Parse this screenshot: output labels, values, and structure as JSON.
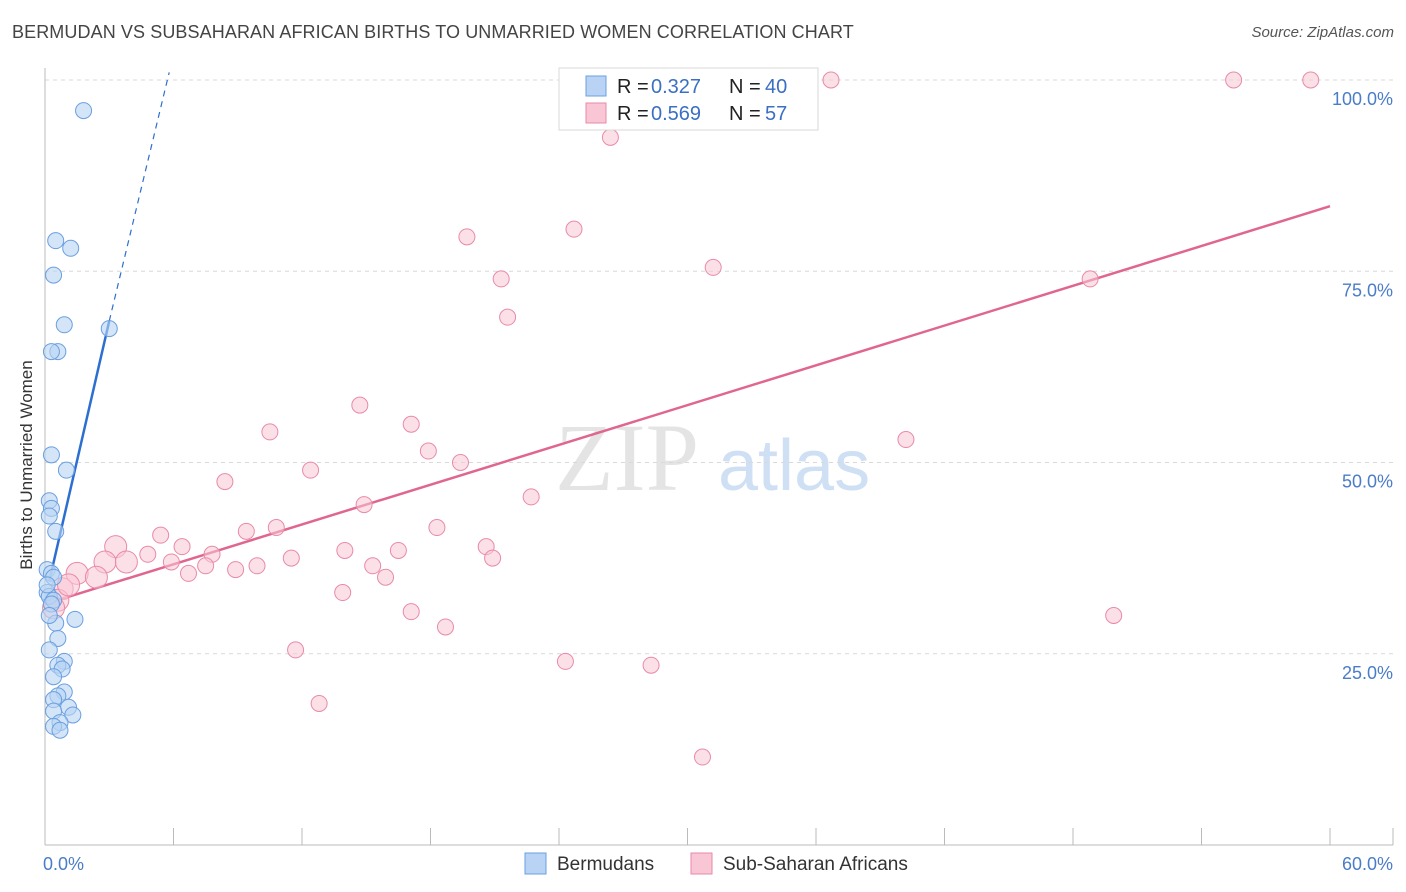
{
  "title": "BERMUDAN VS SUBSAHARAN AFRICAN BIRTHS TO UNMARRIED WOMEN CORRELATION CHART",
  "source": "Source: ZipAtlas.com",
  "watermark": {
    "zip": "ZIP",
    "atlas": "atlas"
  },
  "colors": {
    "blue_fill": "#b8d3f4",
    "blue_stroke": "#6a9fe0",
    "blue_line": "#2c6fd1",
    "pink_fill": "#f9c6d6",
    "pink_stroke": "#e98aa8",
    "pink_line": "#e0668f",
    "tick_text": "#4a7cc7",
    "grid": "#d9d9d9"
  },
  "legend": {
    "rows": [
      {
        "r_label": "R =",
        "r_value": "0.327",
        "n_label": "N =",
        "n_value": "40"
      },
      {
        "r_label": "R =",
        "r_value": "0.569",
        "n_label": "N =",
        "n_value": "57"
      }
    ]
  },
  "chart_data": {
    "type": "scatter",
    "title": "BERMUDAN VS SUBSAHARAN AFRICAN BIRTHS TO UNMARRIED WOMEN CORRELATION CHART",
    "xlabel": "",
    "ylabel": "Births to Unmarried Women",
    "xlim": [
      0,
      60
    ],
    "ylim": [
      0,
      100
    ],
    "x_tick_labels": [
      "0.0%",
      "60.0%"
    ],
    "y_ticks": [
      25,
      50,
      75,
      100
    ],
    "y_tick_labels": [
      "25.0%",
      "50.0%",
      "75.0%",
      "100.0%"
    ],
    "grid": true,
    "legend_position": "top-center",
    "series": [
      {
        "name": "Bermudans",
        "r": 0.327,
        "n": 40,
        "trend": {
          "x0": 0.2,
          "y0": 34.5,
          "x1": 3.0,
          "y1": 68.5,
          "dash_to_x": 5.8,
          "dash_to_y": 101
        },
        "points": [
          {
            "x": 1.8,
            "y": 96
          },
          {
            "x": 0.5,
            "y": 79
          },
          {
            "x": 1.2,
            "y": 78
          },
          {
            "x": 0.4,
            "y": 74.5
          },
          {
            "x": 0.9,
            "y": 68
          },
          {
            "x": 3.0,
            "y": 67.5
          },
          {
            "x": 0.6,
            "y": 64.5
          },
          {
            "x": 0.3,
            "y": 64.5
          },
          {
            "x": 0.3,
            "y": 51
          },
          {
            "x": 1.0,
            "y": 49
          },
          {
            "x": 0.2,
            "y": 45
          },
          {
            "x": 0.3,
            "y": 44
          },
          {
            "x": 0.2,
            "y": 43
          },
          {
            "x": 0.5,
            "y": 41
          },
          {
            "x": 0.1,
            "y": 36
          },
          {
            "x": 0.3,
            "y": 35.5
          },
          {
            "x": 0.4,
            "y": 35
          },
          {
            "x": 0.1,
            "y": 33
          },
          {
            "x": 0.2,
            "y": 32.5
          },
          {
            "x": 0.4,
            "y": 32
          },
          {
            "x": 0.3,
            "y": 31.5
          },
          {
            "x": 1.4,
            "y": 29.5
          },
          {
            "x": 0.5,
            "y": 29
          },
          {
            "x": 0.6,
            "y": 27
          },
          {
            "x": 0.2,
            "y": 25.5
          },
          {
            "x": 0.9,
            "y": 24
          },
          {
            "x": 0.6,
            "y": 23.5
          },
          {
            "x": 0.8,
            "y": 23
          },
          {
            "x": 0.4,
            "y": 22
          },
          {
            "x": 0.9,
            "y": 20
          },
          {
            "x": 0.6,
            "y": 19.5
          },
          {
            "x": 0.4,
            "y": 19
          },
          {
            "x": 1.1,
            "y": 18
          },
          {
            "x": 0.4,
            "y": 17.5
          },
          {
            "x": 1.3,
            "y": 17
          },
          {
            "x": 0.7,
            "y": 16
          },
          {
            "x": 0.4,
            "y": 15.5
          },
          {
            "x": 0.7,
            "y": 15
          },
          {
            "x": 0.2,
            "y": 30
          },
          {
            "x": 0.1,
            "y": 34
          }
        ]
      },
      {
        "name": "Sub-Saharan Africans",
        "r": 0.569,
        "n": 57,
        "trend": {
          "x0": 0,
          "y0": 31.5,
          "x1": 60,
          "y1": 83.5
        },
        "points": [
          {
            "x": 36.7,
            "y": 100
          },
          {
            "x": 55.5,
            "y": 100
          },
          {
            "x": 59.1,
            "y": 100
          },
          {
            "x": 26.4,
            "y": 92.5
          },
          {
            "x": 24.7,
            "y": 80.5
          },
          {
            "x": 19.7,
            "y": 79.5
          },
          {
            "x": 31.2,
            "y": 75.5
          },
          {
            "x": 21.3,
            "y": 74
          },
          {
            "x": 48.8,
            "y": 74
          },
          {
            "x": 21.6,
            "y": 69
          },
          {
            "x": 14.7,
            "y": 57.5
          },
          {
            "x": 17.1,
            "y": 55
          },
          {
            "x": 10.5,
            "y": 54
          },
          {
            "x": 40.2,
            "y": 53
          },
          {
            "x": 17.9,
            "y": 51.5
          },
          {
            "x": 19.4,
            "y": 50
          },
          {
            "x": 12.4,
            "y": 49
          },
          {
            "x": 8.4,
            "y": 47.5
          },
          {
            "x": 22.7,
            "y": 45.5
          },
          {
            "x": 14.9,
            "y": 44.5
          },
          {
            "x": 10.8,
            "y": 41.5
          },
          {
            "x": 18.3,
            "y": 41.5
          },
          {
            "x": 9.4,
            "y": 41
          },
          {
            "x": 5.4,
            "y": 40.5
          },
          {
            "x": 6.4,
            "y": 39
          },
          {
            "x": 3.3,
            "y": 39
          },
          {
            "x": 20.6,
            "y": 39
          },
          {
            "x": 16.5,
            "y": 38.5
          },
          {
            "x": 14.0,
            "y": 38.5
          },
          {
            "x": 4.8,
            "y": 38
          },
          {
            "x": 7.8,
            "y": 38
          },
          {
            "x": 11.5,
            "y": 37.5
          },
          {
            "x": 20.9,
            "y": 37.5
          },
          {
            "x": 2.8,
            "y": 37
          },
          {
            "x": 3.8,
            "y": 37
          },
          {
            "x": 5.9,
            "y": 37
          },
          {
            "x": 7.5,
            "y": 36.5
          },
          {
            "x": 9.9,
            "y": 36.5
          },
          {
            "x": 1.5,
            "y": 35.5
          },
          {
            "x": 15.3,
            "y": 36.5
          },
          {
            "x": 8.9,
            "y": 36
          },
          {
            "x": 6.7,
            "y": 35.5
          },
          {
            "x": 2.4,
            "y": 35
          },
          {
            "x": 15.9,
            "y": 35
          },
          {
            "x": 0.8,
            "y": 33.5
          },
          {
            "x": 13.9,
            "y": 33
          },
          {
            "x": 0.6,
            "y": 32
          },
          {
            "x": 17.1,
            "y": 30.5
          },
          {
            "x": 18.7,
            "y": 28.5
          },
          {
            "x": 49.9,
            "y": 30
          },
          {
            "x": 11.7,
            "y": 25.5
          },
          {
            "x": 24.3,
            "y": 24
          },
          {
            "x": 28.3,
            "y": 23.5
          },
          {
            "x": 12.8,
            "y": 18.5
          },
          {
            "x": 30.7,
            "y": 11.5
          },
          {
            "x": 0.4,
            "y": 31
          },
          {
            "x": 1.1,
            "y": 34
          }
        ]
      }
    ]
  }
}
